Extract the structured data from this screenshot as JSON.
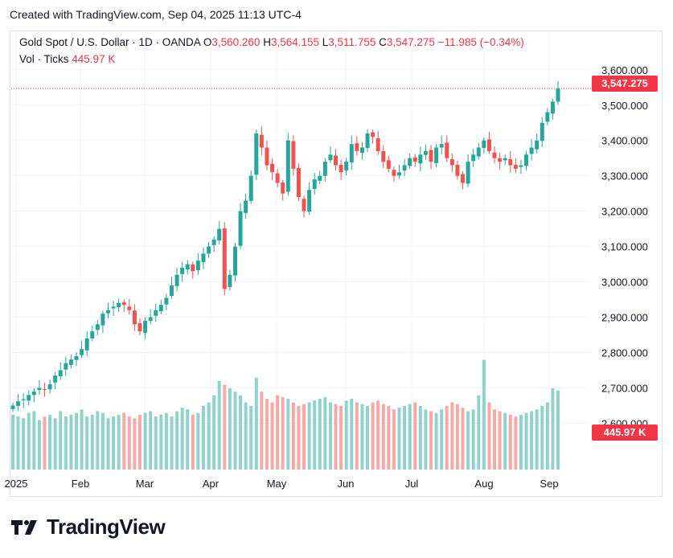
{
  "header": {
    "created": "Created with TradingView.com, Sep 04, 2025 11:13 UTC-4"
  },
  "legend": {
    "symbol": "Gold Spot / U.S. Dollar · 1D · OANDA",
    "o_label": "O",
    "o_value": "3,560.260",
    "h_label": "H",
    "h_value": "3,564.155",
    "l_label": "L",
    "l_value": "3,511.755",
    "c_label": "C",
    "c_value": "3,547.275",
    "change": "−11.985 (−0.34%)"
  },
  "volume_legend": {
    "label": "Vol · Ticks",
    "value": "445.97 K"
  },
  "price_tag": "3,547.275",
  "volume_tag": "445.97 K",
  "footer": {
    "brand": "TradingView"
  },
  "colors": {
    "up": "#26a69a",
    "down": "#ef5350",
    "vol_up": "#92d2cc",
    "vol_down": "#f7a9a7",
    "grid": "#f0f3fa",
    "tag": "#f23645"
  },
  "chart_data": {
    "type": "candlestick",
    "ylim": [
      2560,
      3620
    ],
    "y_ticks": [
      "3,600.000",
      "3,500.000",
      "3,400.000",
      "3,300.000",
      "3,200.000",
      "3,100.000",
      "3,000.000",
      "2,900.000",
      "2,800.000",
      "2,700.000",
      "2,600.000"
    ],
    "y_tick_values": [
      3600,
      3500,
      3400,
      3300,
      3200,
      3100,
      3000,
      2900,
      2800,
      2700,
      2600
    ],
    "x_ticks": [
      "2025",
      "Feb",
      "Mar",
      "Apr",
      "May",
      "Jun",
      "Jul",
      "Aug",
      "Sep"
    ],
    "last_close": 3547.275,
    "close_series": [
      2650,
      2662,
      2668,
      2680,
      2690,
      2700,
      2695,
      2710,
      2735,
      2750,
      2770,
      2780,
      2790,
      2810,
      2840,
      2860,
      2880,
      2910,
      2920,
      2930,
      2940,
      2935,
      2920,
      2880,
      2860,
      2890,
      2900,
      2920,
      2935,
      2955,
      2990,
      3020,
      3040,
      3050,
      3030,
      3060,
      3080,
      3100,
      3120,
      3150,
      2980,
      3020,
      3100,
      3200,
      3230,
      3300,
      3420,
      3380,
      3330,
      3310,
      3280,
      3250,
      3400,
      3320,
      3240,
      3200,
      3260,
      3290,
      3300,
      3340,
      3360,
      3330,
      3310,
      3340,
      3390,
      3370,
      3380,
      3420,
      3410,
      3370,
      3340,
      3320,
      3300,
      3310,
      3330,
      3350,
      3340,
      3360,
      3370,
      3340,
      3380,
      3390,
      3350,
      3330,
      3300,
      3280,
      3340,
      3360,
      3380,
      3400,
      3370,
      3350,
      3340,
      3350,
      3330,
      3320,
      3330,
      3360,
      3380,
      3400,
      3450,
      3480,
      3510,
      3547
    ],
    "volume_ticks_k": [
      310,
      300,
      290,
      320,
      330,
      280,
      300,
      310,
      290,
      330,
      300,
      310,
      320,
      340,
      300,
      310,
      330,
      320,
      290,
      300,
      310,
      320,
      300,
      290,
      310,
      320,
      330,
      300,
      310,
      320,
      300,
      330,
      350,
      340,
      310,
      320,
      360,
      380,
      420,
      500,
      480,
      460,
      440,
      420,
      380,
      360,
      520,
      440,
      400,
      380,
      420,
      410,
      400,
      380,
      360,
      370,
      380,
      390,
      400,
      410,
      380,
      370,
      360,
      390,
      400,
      380,
      370,
      360,
      380,
      390,
      370,
      360,
      340,
      350,
      360,
      370,
      380,
      360,
      340,
      330,
      320,
      340,
      360,
      380,
      370,
      350,
      330,
      340,
      420,
      620,
      380,
      340,
      330,
      320,
      310,
      300,
      310,
      320,
      330,
      340,
      360,
      380,
      460,
      445.97
    ]
  }
}
